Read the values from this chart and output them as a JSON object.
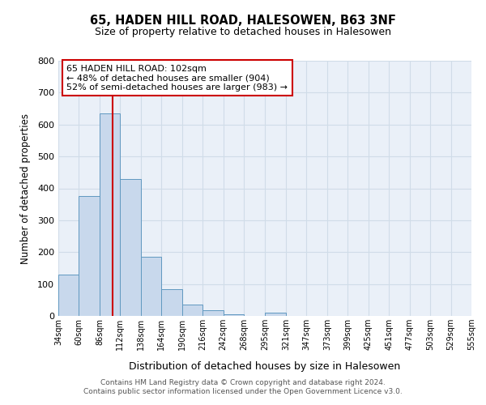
{
  "title": "65, HADEN HILL ROAD, HALESOWEN, B63 3NF",
  "subtitle": "Size of property relative to detached houses in Halesowen",
  "xlabel": "Distribution of detached houses by size in Halesowen",
  "ylabel": "Number of detached properties",
  "footer_line1": "Contains HM Land Registry data © Crown copyright and database right 2024.",
  "footer_line2": "Contains public sector information licensed under the Open Government Licence v3.0.",
  "bar_edges": [
    34,
    60,
    86,
    112,
    138,
    164,
    190,
    216,
    242,
    268,
    295,
    321,
    347,
    373,
    399,
    425,
    451,
    477,
    503,
    529,
    555
  ],
  "bar_heights": [
    130,
    375,
    635,
    430,
    185,
    85,
    35,
    18,
    5,
    0,
    10,
    0,
    0,
    0,
    0,
    0,
    0,
    0,
    0,
    0
  ],
  "bar_color": "#c8d8ec",
  "bar_edgecolor": "#6098c0",
  "reference_line_x": 102,
  "ylim": [
    0,
    800
  ],
  "yticks": [
    0,
    100,
    200,
    300,
    400,
    500,
    600,
    700,
    800
  ],
  "annotation_title": "65 HADEN HILL ROAD: 102sqm",
  "annotation_line1": "← 48% of detached houses are smaller (904)",
  "annotation_line2": "52% of semi-detached houses are larger (983) →",
  "ref_line_color": "#cc0000",
  "grid_color": "#d0dce8",
  "background_color": "#eaf0f8",
  "tick_labels": [
    "34sqm",
    "60sqm",
    "86sqm",
    "112sqm",
    "138sqm",
    "164sqm",
    "190sqm",
    "216sqm",
    "242sqm",
    "268sqm",
    "295sqm",
    "321sqm",
    "347sqm",
    "373sqm",
    "399sqm",
    "425sqm",
    "451sqm",
    "477sqm",
    "503sqm",
    "529sqm",
    "555sqm"
  ]
}
